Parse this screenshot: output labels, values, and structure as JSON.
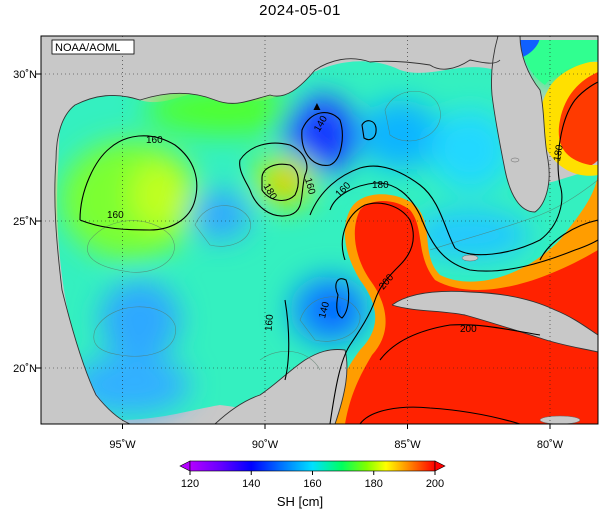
{
  "title": "2024-05-01",
  "credit": "NOAA/AOML",
  "axes": {
    "lon_ticks": [
      {
        "lon": -95,
        "label": "95˚W"
      },
      {
        "lon": -90,
        "label": "90˚W"
      },
      {
        "lon": -85,
        "label": "85˚W"
      },
      {
        "lon": -80,
        "label": "80˚W"
      }
    ],
    "lat_ticks": [
      {
        "lat": 30,
        "label": "30˚N"
      },
      {
        "lat": 25,
        "label": "25˚N"
      },
      {
        "lat": 20,
        "label": "20˚N"
      }
    ],
    "lon_range": [
      -98,
      -78
    ],
    "lat_range": [
      18,
      31
    ],
    "grid": "dotted"
  },
  "colorbar": {
    "label": "SH [cm]",
    "min": 120,
    "max": 200,
    "ticks": [
      {
        "value": 120,
        "label": "120"
      },
      {
        "value": 140,
        "label": "140"
      },
      {
        "value": 160,
        "label": "160"
      },
      {
        "value": 180,
        "label": "180"
      },
      {
        "value": 200,
        "label": "200"
      }
    ]
  },
  "contour_labels": [
    {
      "text": "160"
    },
    {
      "text": "160"
    },
    {
      "text": "140"
    },
    {
      "text": "160"
    },
    {
      "text": "180"
    },
    {
      "text": "160"
    },
    {
      "text": "180"
    },
    {
      "text": "180"
    },
    {
      "text": "200"
    },
    {
      "text": "140"
    },
    {
      "text": "160"
    },
    {
      "text": "200"
    }
  ],
  "marker": {
    "symbol": "▲"
  }
}
